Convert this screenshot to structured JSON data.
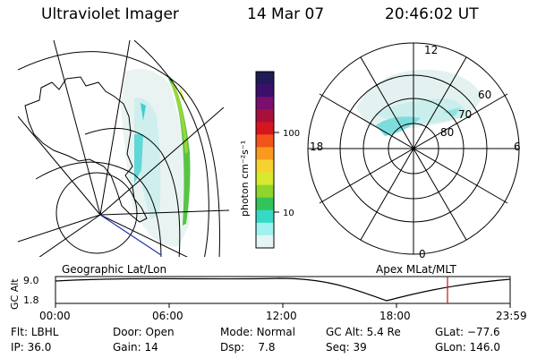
{
  "header": {
    "instrument": "Ultraviolet Imager",
    "date": "14 Mar 07",
    "time": "20:46:02 UT"
  },
  "colorbar": {
    "unit_label": "photon cm⁻²s⁻¹",
    "tick_high": "100",
    "tick_low": "10",
    "colors": [
      "#201a55",
      "#3b0f6a",
      "#7a0f6e",
      "#a8103b",
      "#d6161e",
      "#f2541b",
      "#f89a1e",
      "#f6d230",
      "#d7ea2d",
      "#8fd52b",
      "#33c35a",
      "#36d9c3",
      "#9ef2ef",
      "#e5f5f3"
    ]
  },
  "left_panel": {
    "label": "Geographic Lat/Lon"
  },
  "right_panel": {
    "label": "Apex  MLat/MLT",
    "mlt_labels": {
      "top": "12",
      "left": "18",
      "right": "6",
      "bottom": "0"
    },
    "lat_labels": [
      "60",
      "70",
      "80"
    ]
  },
  "altitude_plot": {
    "ylabel": "GC Alt",
    "yticks": [
      "9.0",
      "1.8"
    ],
    "xticks": [
      "00:00",
      "06:00",
      "12:00",
      "18:00",
      "23:59"
    ],
    "marker_color": "#c01818"
  },
  "status": {
    "row1": [
      {
        "label": "Flt:",
        "value": "LBHL"
      },
      {
        "label": "Door:",
        "value": "Open"
      },
      {
        "label": "Mode:",
        "value": "Normal"
      },
      {
        "label": "GC Alt:",
        "value": "5.4 Re"
      },
      {
        "label": "GLat:",
        "value": "−77.6"
      }
    ],
    "row2": [
      {
        "label": "IP:",
        "value": "36.0"
      },
      {
        "label": "Gain:",
        "value": "14"
      },
      {
        "label": "Dsp:",
        "value": "7.8"
      },
      {
        "label": "Seq:",
        "value": "39"
      },
      {
        "label": "GLon:",
        "value": "146.0"
      }
    ]
  }
}
